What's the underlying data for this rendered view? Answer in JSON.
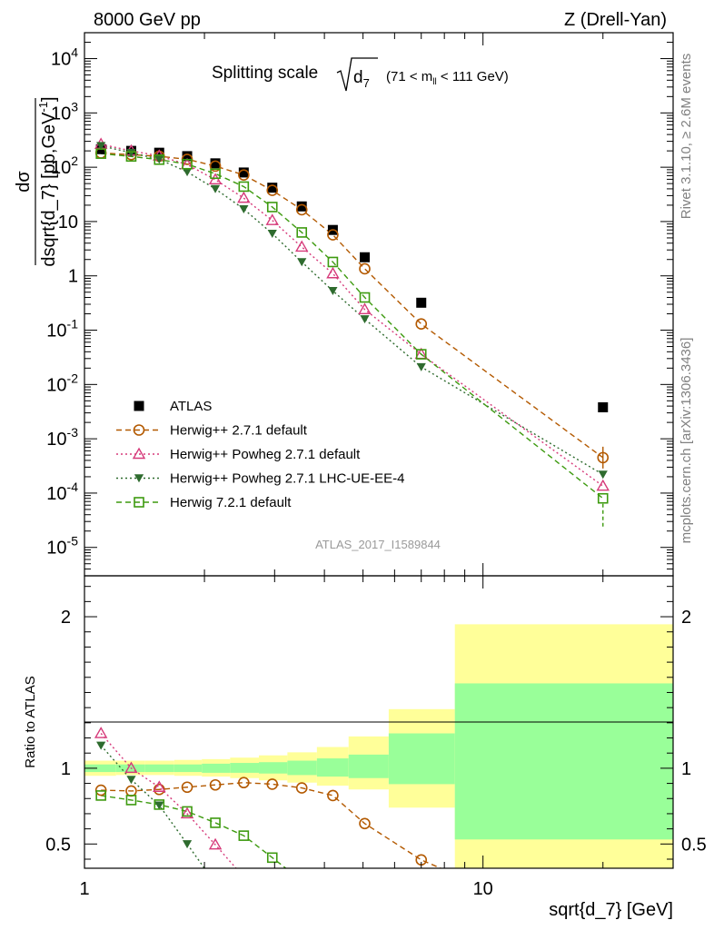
{
  "header": {
    "left": "8000 GeV pp",
    "right": "Z (Drell-Yan)"
  },
  "side_labels": {
    "rivet": "Rivet 3.1.10, ≥ 2.6M events",
    "mcplots": "mcplots.cern.ch [arXiv:1306.3436]"
  },
  "analysis_id": "ATLAS_2017_I1589844",
  "chart_data": [
    {
      "type": "scatter",
      "panel": "main",
      "title_main": "Splitting scale",
      "title_sqrt": "d",
      "title_sub": "7",
      "title_cut_prefix": "(71 < m",
      "title_cut_sub": "ll",
      "title_cut_suffix": " < 111 GeV)",
      "ylabel_num": "dσ",
      "ylabel_den": "dsqrt{d_7} [pb,GeV",
      "ylabel_den_sup": "-1",
      "ylabel_den_end": "]",
      "y_scale": "log",
      "x_scale": "log",
      "ylim": [
        3e-06,
        30000
      ],
      "xlim": [
        1,
        30
      ],
      "y_ticks": [
        {
          "v": 1e-05,
          "label": "10",
          "exp": "-5"
        },
        {
          "v": 0.0001,
          "label": "10",
          "exp": "-4"
        },
        {
          "v": 0.001,
          "label": "10",
          "exp": "-3"
        },
        {
          "v": 0.01,
          "label": "10",
          "exp": "-2"
        },
        {
          "v": 0.1,
          "label": "10",
          "exp": "-1"
        },
        {
          "v": 1,
          "label": "1",
          "exp": ""
        },
        {
          "v": 10,
          "label": "10",
          "exp": ""
        },
        {
          "v": 100,
          "label": "10",
          "exp": "2"
        },
        {
          "v": 1000,
          "label": "10",
          "exp": "3"
        },
        {
          "v": 10000,
          "label": "10",
          "exp": "4"
        }
      ],
      "legend_position": "bottom-left",
      "series": [
        {
          "name": "ATLAS",
          "color": "#000000",
          "marker": "square-filled",
          "line": "none",
          "x": [
            1.1,
            1.31,
            1.54,
            1.81,
            2.13,
            2.51,
            2.96,
            3.51,
            4.2,
            5.05,
            7.0,
            20.0
          ],
          "y": [
            215,
            200,
            185,
            160,
            118,
            80,
            42,
            19,
            7.0,
            2.2,
            0.32,
            0.0038
          ]
        },
        {
          "name": "Herwig++ 2.7.1 default",
          "color": "#b35900",
          "marker": "circle-open",
          "line": "dashed",
          "x": [
            1.1,
            1.31,
            1.54,
            1.81,
            2.13,
            2.51,
            2.96,
            3.51,
            4.2,
            5.05,
            7.0,
            20.0
          ],
          "y": [
            183,
            170,
            159,
            140,
            105,
            72,
            37.5,
            16.5,
            5.7,
            1.35,
            0.13,
            0.00045
          ]
        },
        {
          "name": "Herwig++ Powheg 2.7.1 default",
          "color": "#d63a7a",
          "marker": "triangle-open",
          "line": "dotted",
          "x": [
            1.1,
            1.31,
            1.54,
            1.81,
            2.13,
            2.51,
            2.96,
            3.51,
            4.2,
            5.05,
            7.0,
            20.0
          ],
          "y": [
            265,
            200,
            162,
            112,
            59,
            27,
            10.5,
            3.4,
            1.1,
            0.24,
            0.036,
            0.000135
          ]
        },
        {
          "name": "Herwig++ Powheg 2.7.1 LHC-UE-EE-4",
          "color": "#2e6b2e",
          "marker": "triangle-down-filled",
          "line": "dotted",
          "x": [
            1.1,
            1.31,
            1.54,
            1.81,
            2.13,
            2.51,
            2.96,
            3.51,
            4.2,
            5.05,
            7.0,
            20.0
          ],
          "y": [
            248,
            185,
            140,
            82,
            40,
            17,
            6.0,
            1.8,
            0.53,
            0.16,
            0.021,
            0.00022
          ]
        },
        {
          "name": "Herwig 7.2.1 default",
          "color": "#3d9a0f",
          "marker": "square-open",
          "line": "dashed",
          "x": [
            1.1,
            1.31,
            1.54,
            1.81,
            2.13,
            2.51,
            2.96,
            3.51,
            4.2,
            5.05,
            7.0,
            20.0
          ],
          "y": [
            178,
            158,
            138,
            114,
            76,
            44,
            18.5,
            6.3,
            1.8,
            0.4,
            0.036,
            8e-05
          ]
        }
      ]
    },
    {
      "type": "scatter",
      "panel": "ratio",
      "ylabel": "Ratio to ATLAS",
      "xlabel": "sqrt{d_7} [GeV]",
      "x_scale": "log",
      "xlim": [
        1,
        30
      ],
      "ylim": [
        0.34,
        2.27
      ],
      "y_ticks": [
        {
          "v": 0.5,
          "label": "0.5"
        },
        {
          "v": 1,
          "label": "1"
        },
        {
          "v": 2,
          "label": "2"
        }
      ],
      "x_ticks": [
        {
          "v": 1,
          "label": "1"
        },
        {
          "v": 10,
          "label": "10"
        }
      ],
      "bands": {
        "edges": [
          1,
          1.2,
          1.42,
          1.68,
          1.97,
          2.32,
          2.74,
          3.23,
          3.83,
          4.6,
          5.8,
          8.5,
          30
        ],
        "stat_sys_lo": [
          0.95,
          0.955,
          0.955,
          0.95,
          0.945,
          0.935,
          0.92,
          0.905,
          0.885,
          0.86,
          0.74,
          0.34
        ],
        "stat_sys_hi": [
          1.05,
          1.05,
          1.05,
          1.055,
          1.06,
          1.07,
          1.085,
          1.105,
          1.14,
          1.21,
          1.39,
          1.95
        ],
        "stat_lo": [
          0.975,
          0.975,
          0.975,
          0.975,
          0.97,
          0.97,
          0.965,
          0.955,
          0.945,
          0.935,
          0.895,
          0.53
        ],
        "stat_hi": [
          1.025,
          1.025,
          1.025,
          1.025,
          1.03,
          1.035,
          1.04,
          1.05,
          1.065,
          1.09,
          1.23,
          1.56
        ],
        "outer_color": "#ffff99",
        "inner_color": "#99ff99"
      },
      "series": [
        {
          "name": "Herwig++ 2.7.1 default",
          "color": "#b35900",
          "marker": "circle-open",
          "line": "dashed",
          "x": [
            1.1,
            1.31,
            1.54,
            1.81,
            2.13,
            2.51,
            2.96,
            3.51,
            4.2,
            5.05,
            7.0,
            8.5
          ],
          "y": [
            0.855,
            0.85,
            0.86,
            0.875,
            0.89,
            0.905,
            0.895,
            0.87,
            0.82,
            0.635,
            0.395,
            0.3
          ]
        },
        {
          "name": "Herwig++ Powheg 2.7.1 default",
          "color": "#d63a7a",
          "marker": "triangle-open",
          "line": "dotted",
          "x": [
            1.1,
            1.31,
            1.54,
            1.81,
            2.13,
            2.4
          ],
          "y": [
            1.23,
            1.0,
            0.875,
            0.7,
            0.495,
            0.34
          ]
        },
        {
          "name": "Herwig++ Powheg 2.7.1 LHC-UE-EE-4",
          "color": "#2e6b2e",
          "marker": "triangle-down-filled",
          "line": "dotted",
          "x": [
            1.1,
            1.31,
            1.54,
            1.81,
            2.0
          ],
          "y": [
            1.15,
            0.925,
            0.755,
            0.5,
            0.34
          ]
        },
        {
          "name": "Herwig 7.2.1 default",
          "color": "#3d9a0f",
          "marker": "square-open",
          "line": "dashed",
          "x": [
            1.1,
            1.31,
            1.54,
            1.81,
            2.13,
            2.51,
            2.96,
            3.2
          ],
          "y": [
            0.82,
            0.79,
            0.76,
            0.715,
            0.64,
            0.555,
            0.41,
            0.34
          ]
        }
      ]
    }
  ]
}
